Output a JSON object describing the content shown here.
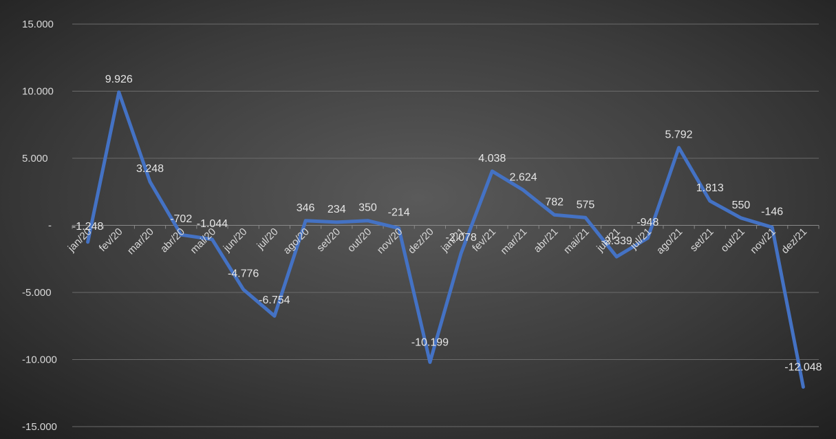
{
  "chart_data": {
    "type": "line",
    "title": "",
    "xlabel": "",
    "ylabel": "",
    "ylim": [
      -15000,
      15000
    ],
    "yticks": [
      15000,
      10000,
      5000,
      0,
      -5000,
      -10000,
      -15000
    ],
    "ytick_labels": [
      "15.000",
      "10.000",
      "5.000",
      "-",
      "-5.000",
      "-10.000",
      "-15.000"
    ],
    "grid": true,
    "legend": "none",
    "colors": {
      "line": "#4472c4",
      "background_center": "#5a5a5a",
      "background_edge": "#1f1f1f",
      "grid": "#6b6b6b",
      "text": "#d9d9d9"
    },
    "categories": [
      "jan/20",
      "fev/20",
      "mar/20",
      "abr/20",
      "mai/20",
      "jun/20",
      "jul/20",
      "ago/20",
      "set/20",
      "out/20",
      "nov/20",
      "dez/20",
      "jan/21",
      "fev/21",
      "mar/21",
      "abr/21",
      "mai/21",
      "jun/21",
      "jul/21",
      "ago/21",
      "set/21",
      "out/21",
      "nov/21",
      "dez/21"
    ],
    "series": [
      {
        "values": [
          -1248,
          9926,
          3248,
          -702,
          -1044,
          -4776,
          -6754,
          346,
          234,
          350,
          -214,
          -10199,
          -2078,
          4038,
          2624,
          782,
          575,
          -2339,
          -948,
          5792,
          1813,
          550,
          -146,
          -12048
        ],
        "labels": [
          "-1.248",
          "9.926",
          "3.248",
          "-702",
          "-1.044",
          "-4.776",
          "-6.754",
          "346",
          "234",
          "350",
          "-214",
          "-10.199",
          "-2.078",
          "4.038",
          "2.624",
          "782",
          "575",
          "-2.339",
          "-948",
          "5.792",
          "1.813",
          "550",
          "-146",
          "-12.048"
        ]
      }
    ]
  }
}
